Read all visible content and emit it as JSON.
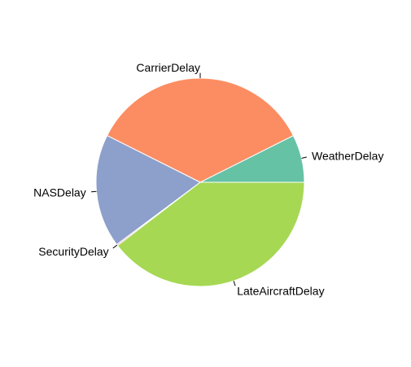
{
  "chart_data": {
    "type": "pie",
    "title": "",
    "slices": [
      {
        "label": "WeatherDelay",
        "value": 7.4,
        "color": "#66c2a5"
      },
      {
        "label": "CarrierDelay",
        "value": 35.2,
        "color": "#fc8d62"
      },
      {
        "label": "NASDelay",
        "value": 17.6,
        "color": "#8da0cb"
      },
      {
        "label": "SecurityDelay",
        "value": 0.2,
        "color": "#e78ac3"
      },
      {
        "label": "LateAircraftDelay",
        "value": 39.6,
        "color": "#a6d854"
      }
    ]
  }
}
